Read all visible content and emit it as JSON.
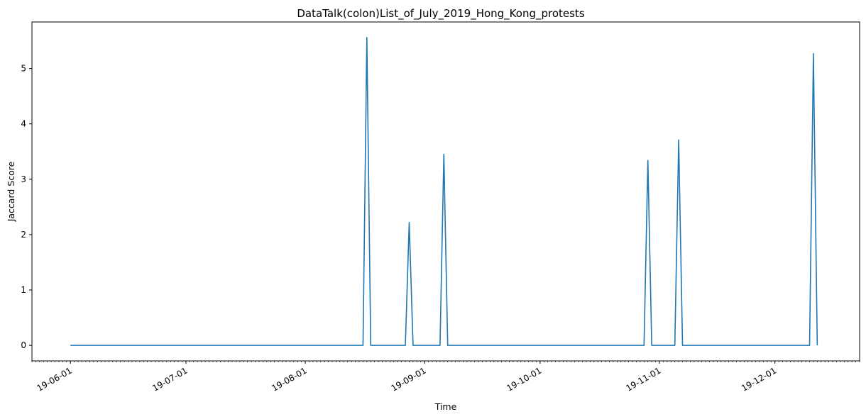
{
  "chart_data": {
    "type": "line",
    "title": "DataTalk(colon)List_of_July_2019_Hong_Kong_protests",
    "xlabel": "Time",
    "ylabel": "Jaccard Score",
    "xlim": [
      "2019-05-22",
      "2019-12-23"
    ],
    "ylim": [
      -0.28,
      5.84
    ],
    "x_ticks": [
      "2019-06-01",
      "2019-07-01",
      "2019-08-01",
      "2019-09-01",
      "2019-10-01",
      "2019-11-01",
      "2019-12-01"
    ],
    "x_tick_labels": [
      "19-06-01",
      "19-07-01",
      "19-08-01",
      "19-09-01",
      "19-10-01",
      "19-11-01",
      "19-12-01"
    ],
    "y_ticks": [
      0,
      1,
      2,
      3,
      4,
      5
    ],
    "grid": false,
    "line_color": "#1f77b4",
    "series": [
      {
        "x": [
          "2019-06-01",
          "2019-08-16",
          "2019-08-17",
          "2019-08-18",
          "2019-08-27",
          "2019-08-28",
          "2019-08-29",
          "2019-09-05",
          "2019-09-06",
          "2019-09-07",
          "2019-10-28",
          "2019-10-29",
          "2019-10-30",
          "2019-11-05",
          "2019-11-06",
          "2019-11-07",
          "2019-12-10",
          "2019-12-11",
          "2019-12-12"
        ],
        "values": [
          0,
          0,
          5.56,
          0,
          0,
          2.22,
          0,
          0,
          3.45,
          0,
          0,
          3.34,
          0,
          0,
          3.71,
          0,
          0,
          5.27,
          0
        ]
      }
    ]
  }
}
